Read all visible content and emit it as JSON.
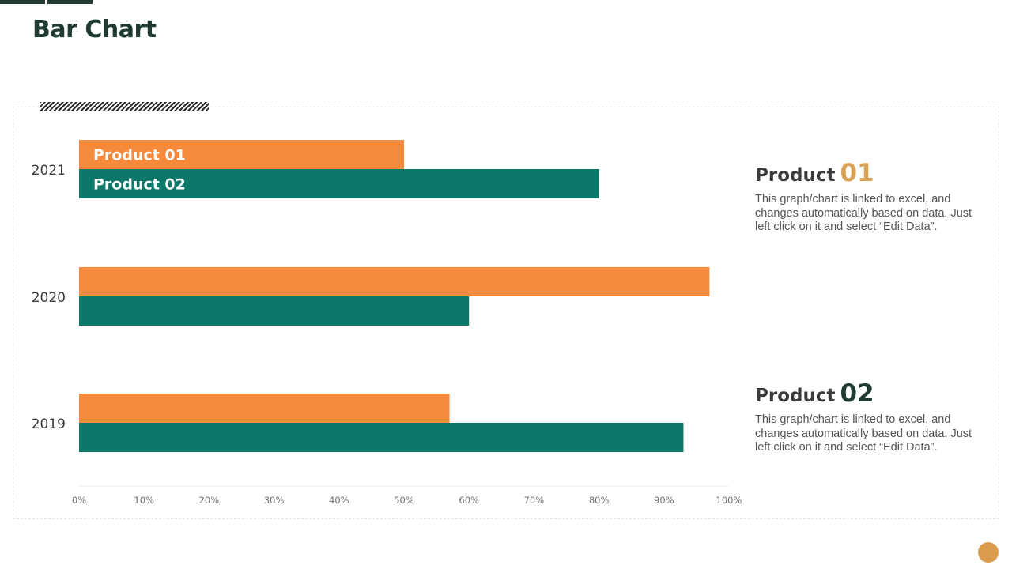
{
  "page": {
    "title": "Bar Chart"
  },
  "colors": {
    "product_01": "#f58a3c",
    "product_02": "#0c786a",
    "title_dark": "#1f3b34",
    "accent_gold": "#d9a357"
  },
  "chart_data": {
    "type": "bar",
    "orientation": "horizontal",
    "categories": [
      "2021",
      "2020",
      "2019"
    ],
    "series": [
      {
        "name": "Product 01",
        "values": [
          0.5,
          0.97,
          0.57
        ]
      },
      {
        "name": "Product 02",
        "values": [
          0.8,
          0.6,
          0.93
        ]
      }
    ],
    "xlim": [
      0,
      1
    ],
    "x_ticks": [
      "0%",
      "10%",
      "20%",
      "30%",
      "40%",
      "50%",
      "60%",
      "70%",
      "80%",
      "90%",
      "100%"
    ],
    "grid": false,
    "legend": "inside first category bars"
  },
  "legend_blocks": [
    {
      "word": "Product",
      "number": "01",
      "description": "This graph/chart is linked to excel, and changes automatically based on data. Just left click on it and select “Edit Data”."
    },
    {
      "word": "Product",
      "number": "02",
      "description": "This graph/chart is linked to excel, and changes automatically based on data. Just left click on it and select “Edit Data”."
    }
  ]
}
